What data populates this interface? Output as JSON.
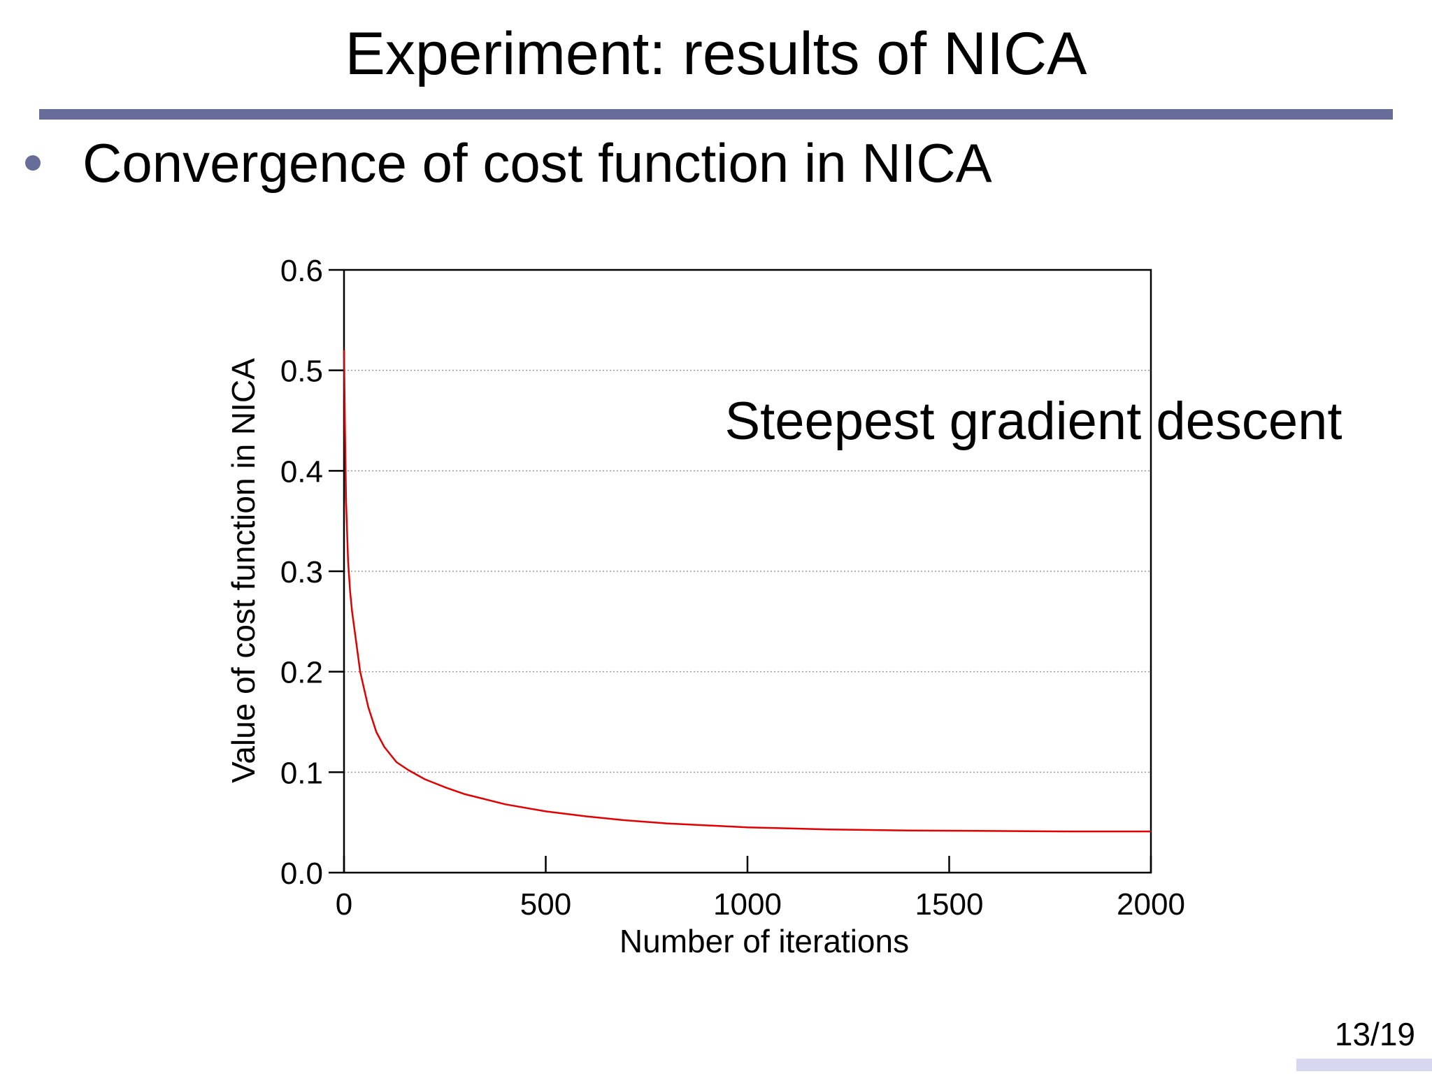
{
  "slide": {
    "title": "Experiment: results of NICA",
    "bullet": "Convergence of cost function in NICA",
    "page_number": "13/19"
  },
  "colors": {
    "accent": "#676c99",
    "page_bar": "#d7d8ef",
    "series": "#e00000"
  },
  "chart_data": {
    "type": "line",
    "title": "",
    "xlabel": "Number of iterations",
    "ylabel": "Value of cost function in NICA",
    "xlim": [
      0,
      2000
    ],
    "ylim": [
      0,
      0.6
    ],
    "xticks": [
      "0",
      "500",
      "1000",
      "1500",
      "2000"
    ],
    "xtick_values": [
      0,
      500,
      1000,
      1500,
      2000
    ],
    "yticks": [
      "0.0",
      "0.1",
      "0.2",
      "0.3",
      "0.4",
      "0.5",
      "0.6"
    ],
    "ytick_values": [
      0,
      0.1,
      0.2,
      0.3,
      0.4,
      0.5,
      0.6
    ],
    "grid": "horizontal dotted",
    "annotation": "Steepest gradient descent",
    "series": [
      {
        "x": [
          0,
          2,
          5,
          10,
          15,
          20,
          30,
          40,
          60,
          80,
          100,
          130,
          160,
          200,
          250,
          300,
          400,
          500,
          600,
          700,
          800,
          1000,
          1200,
          1400,
          1600,
          1800,
          2000
        ],
        "y": [
          0.52,
          0.45,
          0.37,
          0.31,
          0.28,
          0.26,
          0.23,
          0.2,
          0.165,
          0.14,
          0.125,
          0.11,
          0.102,
          0.093,
          0.085,
          0.078,
          0.068,
          0.061,
          0.056,
          0.052,
          0.049,
          0.045,
          0.043,
          0.042,
          0.0415,
          0.041,
          0.041
        ]
      }
    ]
  }
}
